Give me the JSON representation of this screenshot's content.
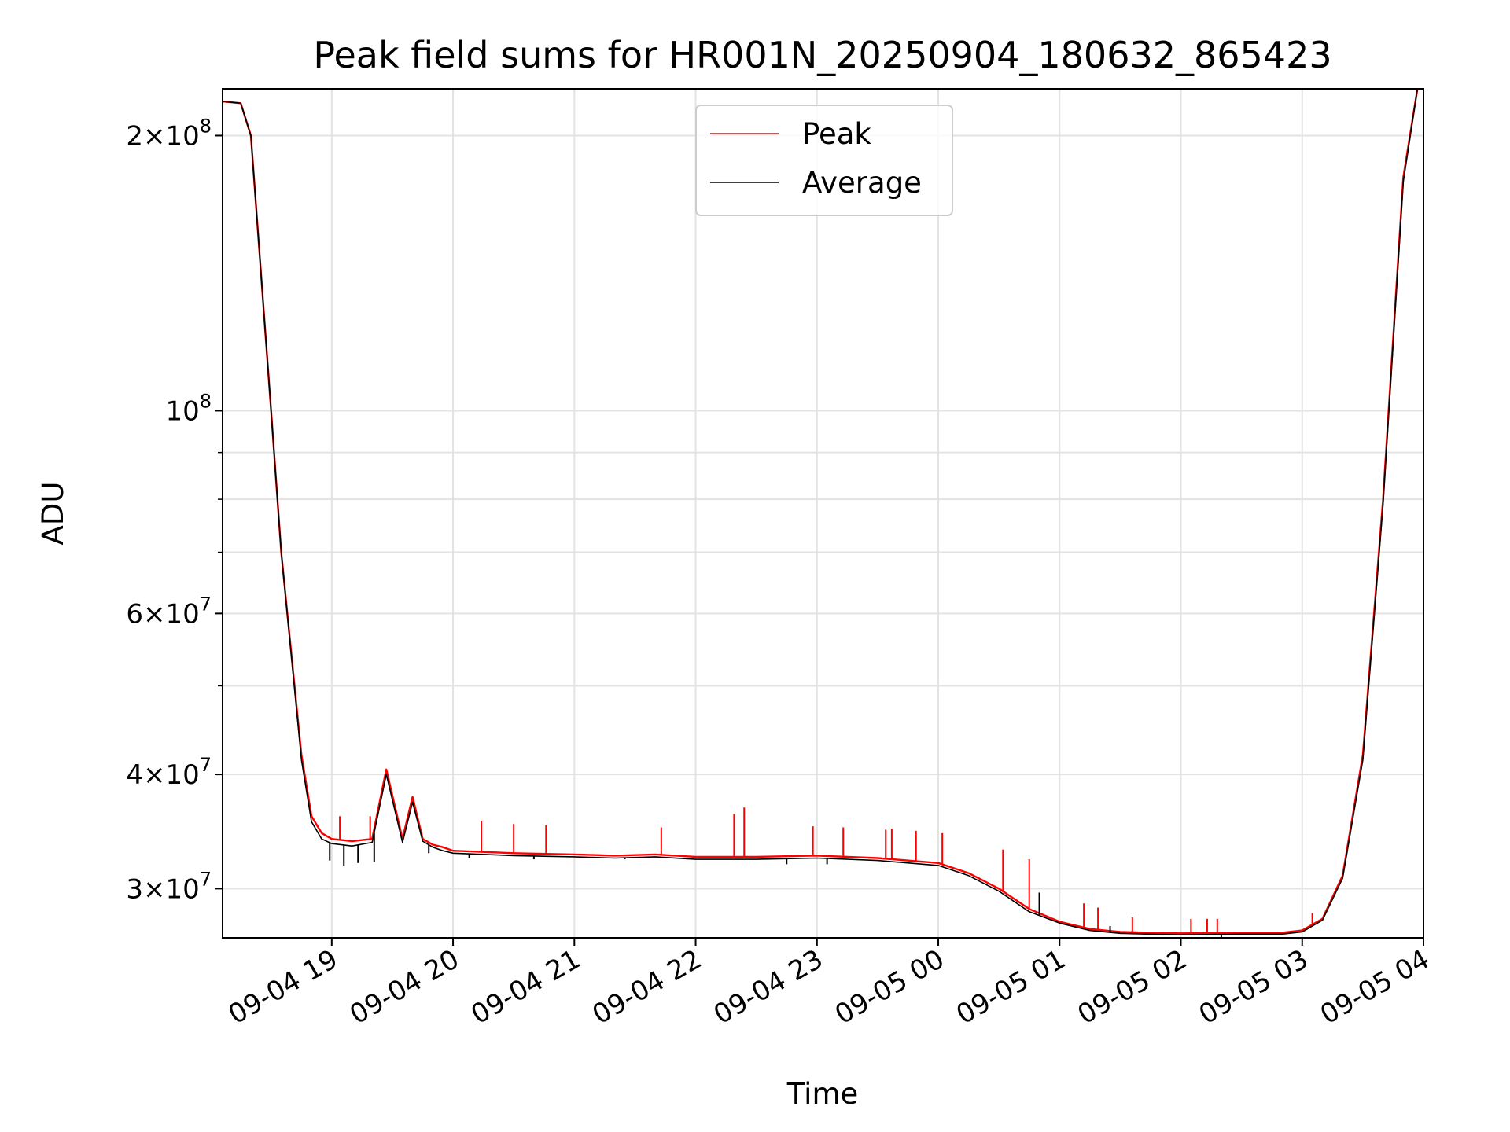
{
  "chart_data": {
    "type": "line",
    "title": "Peak field sums for HR001N_20250904_180632_865423",
    "xlabel": "Time",
    "ylabel": "ADU",
    "y_scale": "log",
    "ylim": [
      26500000,
      225000000
    ],
    "xlim": [
      "2025-09-04 18:06",
      "2025-09-05 04:00"
    ],
    "grid": true,
    "legend_position": "upper center",
    "x_tick_labels": [
      "09-04 19",
      "09-04 20",
      "09-04 21",
      "09-04 22",
      "09-04 23",
      "09-05 00",
      "09-05 01",
      "09-05 02",
      "09-05 03",
      "09-05 04"
    ],
    "x_tick_times": [
      "2025-09-04 19:00",
      "2025-09-04 20:00",
      "2025-09-04 21:00",
      "2025-09-04 22:00",
      "2025-09-04 23:00",
      "2025-09-05 00:00",
      "2025-09-05 01:00",
      "2025-09-05 02:00",
      "2025-09-05 03:00",
      "2025-09-05 04:00"
    ],
    "y_major_ticks": [
      {
        "value": 30000000,
        "mantissa": "3",
        "exponent": "7"
      },
      {
        "value": 40000000,
        "mantissa": "4",
        "exponent": "7"
      },
      {
        "value": 60000000,
        "mantissa": "6",
        "exponent": "7"
      },
      {
        "value": 100000000,
        "mantissa": "",
        "exponent": "8"
      },
      {
        "value": 200000000,
        "mantissa": "2",
        "exponent": "8"
      }
    ],
    "y_minor_ticks": [
      50000000,
      70000000,
      80000000,
      90000000
    ],
    "series": [
      {
        "name": "Peak",
        "color": "#ff0000",
        "x": [
          "2025-09-04 18:06",
          "2025-09-04 18:15",
          "2025-09-04 18:20",
          "2025-09-04 18:30",
          "2025-09-04 18:35",
          "2025-09-04 18:45",
          "2025-09-04 18:50",
          "2025-09-04 18:55",
          "2025-09-04 19:00",
          "2025-09-04 19:10",
          "2025-09-04 19:20",
          "2025-09-04 19:27",
          "2025-09-04 19:35",
          "2025-09-04 19:40",
          "2025-09-04 19:45",
          "2025-09-04 19:50",
          "2025-09-04 19:55",
          "2025-09-04 20:00",
          "2025-09-04 20:30",
          "2025-09-04 21:00",
          "2025-09-04 21:20",
          "2025-09-04 21:40",
          "2025-09-04 22:00",
          "2025-09-04 22:30",
          "2025-09-04 23:00",
          "2025-09-04 23:30",
          "2025-09-05 00:00",
          "2025-09-05 00:15",
          "2025-09-05 00:30",
          "2025-09-05 00:45",
          "2025-09-05 01:00",
          "2025-09-05 01:15",
          "2025-09-05 01:30",
          "2025-09-05 01:45",
          "2025-09-05 02:00",
          "2025-09-05 02:30",
          "2025-09-05 02:50",
          "2025-09-05 03:00",
          "2025-09-05 03:10",
          "2025-09-05 03:20",
          "2025-09-05 03:30",
          "2025-09-05 03:40",
          "2025-09-05 03:50",
          "2025-09-05 03:57"
        ],
        "values": [
          218000000,
          217000000,
          200000000,
          100000000,
          70000000,
          42000000,
          36000000,
          34500000,
          34000000,
          33800000,
          34000000,
          40500000,
          34000000,
          37800000,
          34000000,
          33500000,
          33300000,
          33000000,
          32800000,
          32700000,
          32600000,
          32700000,
          32500000,
          32500000,
          32600000,
          32400000,
          32000000,
          31200000,
          30000000,
          28500000,
          27600000,
          27100000,
          26900000,
          26850000,
          26800000,
          26850000,
          26850000,
          27000000,
          27800000,
          31000000,
          42000000,
          80000000,
          180000000,
          225000000
        ],
        "spikes": [
          {
            "x": "2025-09-04 19:04",
            "value": 36000000
          },
          {
            "x": "2025-09-04 19:19",
            "value": 36000000
          },
          {
            "x": "2025-09-04 20:14",
            "value": 35600000
          },
          {
            "x": "2025-09-04 20:30",
            "value": 35300000
          },
          {
            "x": "2025-09-04 20:46",
            "value": 35200000
          },
          {
            "x": "2025-09-04 21:43",
            "value": 35000000
          },
          {
            "x": "2025-09-04 22:19",
            "value": 36200000
          },
          {
            "x": "2025-09-04 22:24",
            "value": 36800000
          },
          {
            "x": "2025-09-04 22:58",
            "value": 35100000
          },
          {
            "x": "2025-09-04 23:13",
            "value": 35000000
          },
          {
            "x": "2025-09-04 23:34",
            "value": 34800000
          },
          {
            "x": "2025-09-04 23:37",
            "value": 34900000
          },
          {
            "x": "2025-09-04 23:49",
            "value": 34700000
          },
          {
            "x": "2025-09-05 00:02",
            "value": 34500000
          },
          {
            "x": "2025-09-05 00:32",
            "value": 33100000
          },
          {
            "x": "2025-09-05 00:45",
            "value": 32300000
          },
          {
            "x": "2025-09-05 01:12",
            "value": 28900000
          },
          {
            "x": "2025-09-05 01:19",
            "value": 28600000
          },
          {
            "x": "2025-09-05 01:36",
            "value": 27900000
          },
          {
            "x": "2025-09-05 02:05",
            "value": 27800000
          },
          {
            "x": "2025-09-05 02:13",
            "value": 27800000
          },
          {
            "x": "2025-09-05 02:18",
            "value": 27800000
          },
          {
            "x": "2025-09-05 03:05",
            "value": 28200000
          }
        ]
      },
      {
        "name": "Average",
        "color": "#000000",
        "x": [
          "2025-09-04 18:06",
          "2025-09-04 18:15",
          "2025-09-04 18:20",
          "2025-09-04 18:30",
          "2025-09-04 18:35",
          "2025-09-04 18:45",
          "2025-09-04 18:50",
          "2025-09-04 18:55",
          "2025-09-04 19:00",
          "2025-09-04 19:10",
          "2025-09-04 19:20",
          "2025-09-04 19:27",
          "2025-09-04 19:35",
          "2025-09-04 19:40",
          "2025-09-04 19:45",
          "2025-09-04 19:50",
          "2025-09-04 19:55",
          "2025-09-04 20:00",
          "2025-09-04 20:30",
          "2025-09-04 21:00",
          "2025-09-04 21:20",
          "2025-09-04 21:40",
          "2025-09-04 22:00",
          "2025-09-04 22:30",
          "2025-09-04 23:00",
          "2025-09-04 23:30",
          "2025-09-05 00:00",
          "2025-09-05 00:15",
          "2025-09-05 00:30",
          "2025-09-05 00:45",
          "2025-09-05 01:00",
          "2025-09-05 01:15",
          "2025-09-05 01:30",
          "2025-09-05 01:45",
          "2025-09-05 02:00",
          "2025-09-05 02:30",
          "2025-09-05 02:50",
          "2025-09-05 03:00",
          "2025-09-05 03:10",
          "2025-09-05 03:20",
          "2025-09-05 03:30",
          "2025-09-05 03:40",
          "2025-09-05 03:50",
          "2025-09-05 03:57"
        ],
        "values": [
          218000000,
          217000000,
          200000000,
          100000000,
          70000000,
          41500000,
          35500000,
          34000000,
          33600000,
          33400000,
          33700000,
          40000000,
          33700000,
          37300000,
          33800000,
          33300000,
          33000000,
          32800000,
          32600000,
          32500000,
          32400000,
          32500000,
          32300000,
          32300000,
          32400000,
          32200000,
          31800000,
          31000000,
          29800000,
          28300000,
          27500000,
          27000000,
          26800000,
          26750000,
          26700000,
          26750000,
          26750000,
          26900000,
          27700000,
          30800000,
          41500000,
          79000000,
          178000000,
          225000000
        ],
        "dips": [
          {
            "x": "2025-09-04 18:59",
            "value": 32200000
          },
          {
            "x": "2025-09-04 19:06",
            "value": 31800000
          },
          {
            "x": "2025-09-04 19:13",
            "value": 32000000
          },
          {
            "x": "2025-09-04 19:21",
            "value": 32100000
          },
          {
            "x": "2025-09-04 19:48",
            "value": 32800000
          },
          {
            "x": "2025-09-04 20:08",
            "value": 32400000
          },
          {
            "x": "2025-09-04 20:40",
            "value": 32300000
          },
          {
            "x": "2025-09-04 21:25",
            "value": 32300000
          },
          {
            "x": "2025-09-04 22:45",
            "value": 31900000
          },
          {
            "x": "2025-09-04 23:05",
            "value": 31900000
          },
          {
            "x": "2025-09-05 00:50",
            "value": 29700000
          },
          {
            "x": "2025-09-05 01:25",
            "value": 27300000
          },
          {
            "x": "2025-09-05 02:20",
            "value": 26500000
          }
        ]
      }
    ]
  }
}
